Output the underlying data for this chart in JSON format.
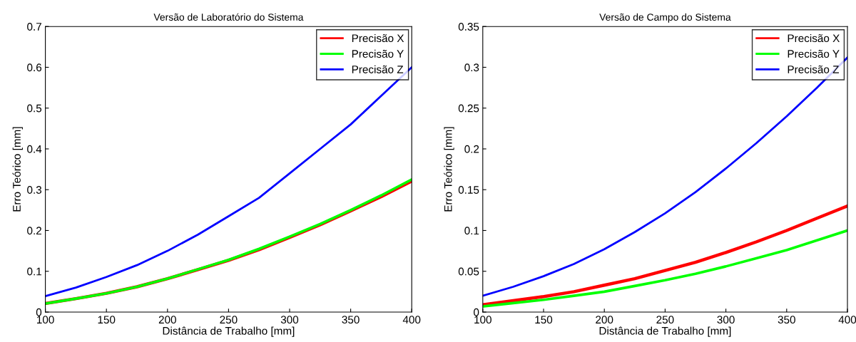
{
  "chart_data": [
    {
      "type": "line",
      "title": "Versão de Laboratório do Sistema",
      "xlabel": "Distância de Trabalho [mm]",
      "ylabel": "Erro Teórico [mm]",
      "x": [
        100,
        125,
        150,
        175,
        200,
        225,
        250,
        275,
        300,
        325,
        350,
        375,
        400
      ],
      "series": [
        {
          "name": "Precisão X",
          "color": "#ff0000",
          "values": [
            0.021,
            0.033,
            0.046,
            0.062,
            0.082,
            0.104,
            0.127,
            0.153,
            0.183,
            0.214,
            0.248,
            0.283,
            0.321
          ]
        },
        {
          "name": "Precisão Y",
          "color": "#00ff00",
          "values": [
            0.021,
            0.033,
            0.046,
            0.062,
            0.082,
            0.105,
            0.128,
            0.155,
            0.185,
            0.216,
            0.25,
            0.286,
            0.325
          ]
        },
        {
          "name": "Precisão Z",
          "color": "#0000ff",
          "values": [
            0.039,
            0.06,
            0.086,
            0.115,
            0.15,
            0.19,
            0.235,
            0.28,
            0.34,
            0.4,
            0.46,
            0.53,
            0.6
          ]
        }
      ],
      "xlim": [
        100,
        400
      ],
      "xticks": [
        100,
        150,
        200,
        250,
        300,
        350,
        400
      ],
      "ylim": [
        0,
        0.7
      ],
      "yticks": [
        0,
        0.1,
        0.2,
        0.3,
        0.4,
        0.5,
        0.6,
        0.7
      ],
      "legend": "top right",
      "grid": false,
      "line_style": "solid"
    },
    {
      "type": "line",
      "title": "Versão de Campo do Sistema",
      "xlabel": "Distância de Trabalho [mm]",
      "ylabel": "Erro Teórico [mm]",
      "x": [
        100,
        125,
        150,
        175,
        200,
        225,
        250,
        275,
        300,
        325,
        350,
        375,
        400
      ],
      "series": [
        {
          "name": "Precisão X",
          "color": "#ff0000",
          "values": [
            0.009,
            0.014,
            0.019,
            0.025,
            0.033,
            0.041,
            0.051,
            0.061,
            0.073,
            0.086,
            0.1,
            0.115,
            0.13
          ]
        },
        {
          "name": "Precisão Y",
          "color": "#00ff00",
          "values": [
            0.007,
            0.011,
            0.015,
            0.02,
            0.025,
            0.032,
            0.039,
            0.047,
            0.056,
            0.066,
            0.076,
            0.088,
            0.1
          ]
        },
        {
          "name": "Precisão Z",
          "color": "#0000ff",
          "values": [
            0.02,
            0.031,
            0.044,
            0.059,
            0.077,
            0.098,
            0.121,
            0.147,
            0.176,
            0.207,
            0.24,
            0.275,
            0.312
          ]
        }
      ],
      "xlim": [
        100,
        400
      ],
      "xticks": [
        100,
        150,
        200,
        250,
        300,
        350,
        400
      ],
      "ylim": [
        0,
        0.35
      ],
      "yticks": [
        0,
        0.05,
        0.1,
        0.15,
        0.2,
        0.25,
        0.3,
        0.35
      ],
      "legend": "top right",
      "grid": false,
      "line_style": "solid"
    }
  ]
}
